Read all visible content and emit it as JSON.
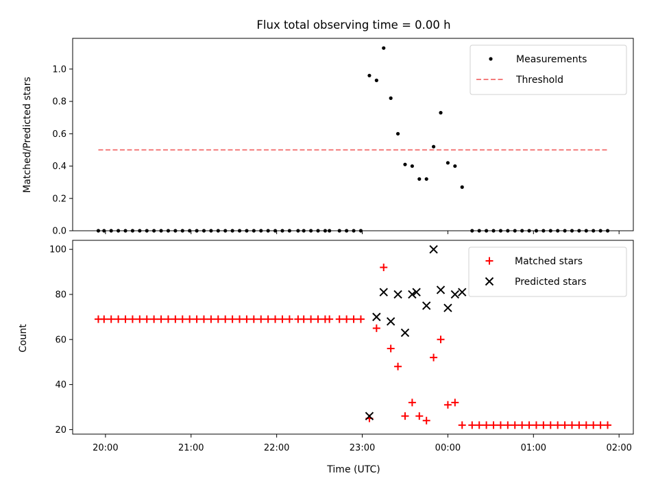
{
  "chart_data": [
    {
      "type": "scatter",
      "title": "Flux total observing time = 0.00 h",
      "xlabel": "",
      "ylabel": "Matched/Predicted stars",
      "xlim": [
        "19:37",
        "02:10"
      ],
      "ylim": [
        0,
        1.19
      ],
      "yticks": [
        "0.0",
        "0.2",
        "0.4",
        "0.6",
        "0.8",
        "1.0"
      ],
      "legend_position": "top-right",
      "series": [
        {
          "name": "Measurements",
          "color": "#000000",
          "marker": "dot",
          "x": [
            "19:55",
            "19:59",
            "20:04",
            "20:09",
            "20:14",
            "20:19",
            "20:24",
            "20:29",
            "20:34",
            "20:39",
            "20:44",
            "20:49",
            "20:54",
            "20:59",
            "21:04",
            "21:09",
            "21:14",
            "21:19",
            "21:24",
            "21:29",
            "21:34",
            "21:39",
            "21:44",
            "21:49",
            "21:54",
            "21:59",
            "22:04",
            "22:09",
            "22:15",
            "22:19",
            "22:24",
            "22:29",
            "22:34",
            "22:37",
            "22:44",
            "22:49",
            "22:54",
            "22:59",
            "23:05",
            "23:10",
            "23:20",
            "23:25",
            "23:30",
            "23:35",
            "23:40",
            "23:45",
            "23:50",
            "23:55",
            "24:00",
            "24:05",
            "24:10",
            "24:17",
            "24:22",
            "24:27",
            "24:32",
            "24:37",
            "24:42",
            "24:47",
            "24:52",
            "24:57",
            "25:02",
            "25:07",
            "25:12",
            "25:17",
            "25:22",
            "25:27",
            "25:32",
            "25:37",
            "25:42",
            "25:47",
            "25:52"
          ],
          "y": [
            0,
            0,
            0,
            0,
            0,
            0,
            0,
            0,
            0,
            0,
            0,
            0,
            0,
            0,
            0,
            0,
            0,
            0,
            0,
            0,
            0,
            0,
            0,
            0,
            0,
            0,
            0,
            0,
            0,
            0,
            0,
            0,
            0,
            0,
            0,
            0,
            0,
            0,
            0.96,
            0.93,
            0.82,
            0.6,
            0.41,
            0.4,
            0.32,
            0.32,
            0.52,
            0.73,
            0.42,
            0.4,
            0.27,
            0,
            0,
            0,
            0,
            0,
            0,
            0,
            0,
            0,
            0,
            0,
            0,
            0,
            0,
            0,
            0,
            0,
            0,
            0,
            0
          ]
        },
        {
          "name": "Threshold",
          "color": "#f47c7c",
          "line": "dashed",
          "x": [
            "19:55",
            "25:52"
          ],
          "y": [
            0.5,
            0.5
          ]
        }
      ],
      "extra_points": [
        {
          "series": "Measurements",
          "x": "23:15",
          "y": 1.13
        }
      ]
    },
    {
      "type": "scatter",
      "title": "",
      "xlabel": "Time (UTC)",
      "ylabel": "Count",
      "xlim": [
        "19:37",
        "02:10"
      ],
      "ylim": [
        18,
        104
      ],
      "xticks": [
        "20:00",
        "21:00",
        "22:00",
        "23:00",
        "00:00",
        "01:00",
        "02:00"
      ],
      "yticks": [
        "20",
        "40",
        "60",
        "80",
        "100"
      ],
      "legend_position": "top-right",
      "series": [
        {
          "name": "Matched stars",
          "color": "#ff0000",
          "marker": "plus",
          "x": [
            "19:55",
            "19:59",
            "20:04",
            "20:09",
            "20:14",
            "20:19",
            "20:24",
            "20:29",
            "20:34",
            "20:39",
            "20:44",
            "20:49",
            "20:54",
            "20:59",
            "21:04",
            "21:09",
            "21:14",
            "21:19",
            "21:24",
            "21:29",
            "21:34",
            "21:39",
            "21:44",
            "21:49",
            "21:54",
            "21:59",
            "22:04",
            "22:09",
            "22:15",
            "22:19",
            "22:24",
            "22:29",
            "22:34",
            "22:37",
            "22:44",
            "22:49",
            "22:54",
            "22:59",
            "23:05",
            "23:10",
            "23:15",
            "23:20",
            "23:25",
            "23:30",
            "23:35",
            "23:40",
            "23:45",
            "23:50",
            "23:55",
            "24:00",
            "24:05",
            "24:10",
            "24:17",
            "24:22",
            "24:27",
            "24:32",
            "24:37",
            "24:42",
            "24:47",
            "24:52",
            "24:57",
            "25:02",
            "25:07",
            "25:12",
            "25:17",
            "25:22",
            "25:27",
            "25:32",
            "25:37",
            "25:42",
            "25:47",
            "25:52"
          ],
          "y": [
            69,
            69,
            69,
            69,
            69,
            69,
            69,
            69,
            69,
            69,
            69,
            69,
            69,
            69,
            69,
            69,
            69,
            69,
            69,
            69,
            69,
            69,
            69,
            69,
            69,
            69,
            69,
            69,
            69,
            69,
            69,
            69,
            69,
            69,
            69,
            69,
            69,
            69,
            25,
            65,
            92,
            56,
            48,
            26,
            32,
            26,
            24,
            52,
            60,
            31,
            32,
            22,
            22,
            22,
            22,
            22,
            22,
            22,
            22,
            22,
            22,
            22,
            22,
            22,
            22,
            22,
            22,
            22,
            22,
            22,
            22,
            22
          ]
        },
        {
          "name": "Predicted stars",
          "color": "#000000",
          "marker": "x",
          "x": [
            "23:05",
            "23:10",
            "23:15",
            "23:20",
            "23:25",
            "23:30",
            "23:35",
            "23:38",
            "23:45",
            "23:50",
            "23:55",
            "24:00",
            "24:05",
            "24:10"
          ],
          "y": [
            26,
            70,
            81,
            68,
            80,
            63,
            80,
            81,
            75,
            100,
            82,
            74,
            80,
            81
          ]
        }
      ]
    }
  ]
}
